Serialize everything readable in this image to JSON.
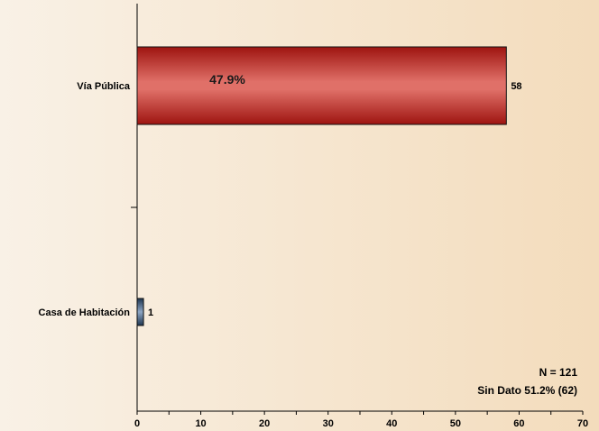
{
  "chart_data": {
    "type": "bar",
    "orientation": "horizontal",
    "categories": [
      "Vía Pública",
      "Casa de Habitación"
    ],
    "values": [
      58,
      1
    ],
    "value_labels": [
      "58",
      "1"
    ],
    "percent_labels": [
      "47.9%",
      ""
    ],
    "bar_colors": [
      "#b5231f",
      "#2f4a66"
    ],
    "xlim": [
      0,
      70
    ],
    "x_ticks": [
      0,
      10,
      20,
      30,
      40,
      50,
      60,
      70
    ],
    "grid": false,
    "title": "",
    "xlabel": "",
    "ylabel": "",
    "notes": [
      "N = 121",
      "Sin Dato 51.2% (62)"
    ]
  },
  "colors": {
    "background_light": "#f9f1e6",
    "background_warm": "#f3dcbc"
  }
}
